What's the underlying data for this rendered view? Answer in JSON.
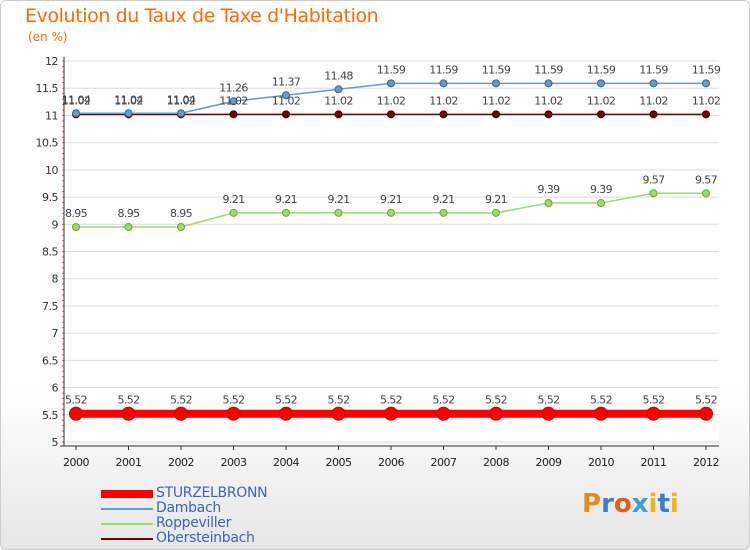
{
  "chart_data": {
    "type": "line",
    "title": "Evolution du Taux de Taxe d'Habitation",
    "subtitle": "(en %)",
    "xlabel": "",
    "ylabel": "",
    "x": [
      "2000",
      "2001",
      "2002",
      "2003",
      "2004",
      "2005",
      "2006",
      "2007",
      "2008",
      "2009",
      "2010",
      "2011",
      "2012"
    ],
    "ylim": [
      5,
      12
    ],
    "yticks": [
      "5",
      "5.5",
      "6",
      "6.5",
      "7",
      "7.5",
      "8",
      "8.5",
      "9",
      "9.5",
      "10",
      "10.5",
      "11",
      "11.5",
      "12"
    ],
    "grid": "horizontal",
    "legend_position": "bottom-left",
    "series": [
      {
        "name": "STURZELBRONN",
        "color": "#ff0000",
        "values": [
          5.52,
          5.52,
          5.52,
          5.52,
          5.52,
          5.52,
          5.52,
          5.52,
          5.52,
          5.52,
          5.52,
          5.52,
          5.52
        ],
        "labels": [
          "5.52",
          "5.52",
          "5.52",
          "5.52",
          "5.52",
          "5.52",
          "5.52",
          "5.52",
          "5.52",
          "5.52",
          "5.52",
          "5.52",
          "5.52"
        ]
      },
      {
        "name": "Dambach",
        "color": "#6699cc",
        "values": [
          11.04,
          11.04,
          11.04,
          11.26,
          11.37,
          11.48,
          11.59,
          11.59,
          11.59,
          11.59,
          11.59,
          11.59,
          11.59
        ],
        "labels": [
          "11.04",
          "11.04",
          "11.04",
          "11.26",
          "11.37",
          "11.48",
          "11.59",
          "11.59",
          "11.59",
          "11.59",
          "11.59",
          "11.59",
          "11.59"
        ]
      },
      {
        "name": "Roppeviller",
        "color": "#99dd66",
        "values": [
          8.95,
          8.95,
          8.95,
          9.21,
          9.21,
          9.21,
          9.21,
          9.21,
          9.21,
          9.39,
          9.39,
          9.57,
          9.57
        ],
        "labels": [
          "8.95",
          "8.95",
          "8.95",
          "9.21",
          "9.21",
          "9.21",
          "9.21",
          "9.21",
          "9.21",
          "9.39",
          "9.39",
          "9.57",
          "9.57"
        ]
      },
      {
        "name": "Obersteinbach",
        "color": "#770000",
        "values": [
          11.02,
          11.02,
          11.02,
          11.02,
          11.02,
          11.02,
          11.02,
          11.02,
          11.02,
          11.02,
          11.02,
          11.02,
          11.02
        ],
        "labels": [
          "11.02",
          "11.02",
          "11.02",
          "11.02",
          "11.02",
          "11.02",
          "11.02",
          "11.02",
          "11.02",
          "11.02",
          "11.02",
          "11.02",
          "11.02"
        ]
      }
    ]
  },
  "logo": {
    "text": "Proxiti",
    "letters": [
      "P",
      "r",
      "o",
      "x",
      "i",
      "t",
      "i"
    ],
    "colors": [
      "#e88a1a",
      "#3b7fd0",
      "#e85a1a",
      "#3b9fd8",
      "#f2b01e",
      "#3b7fd0",
      "#f2b01e"
    ]
  }
}
